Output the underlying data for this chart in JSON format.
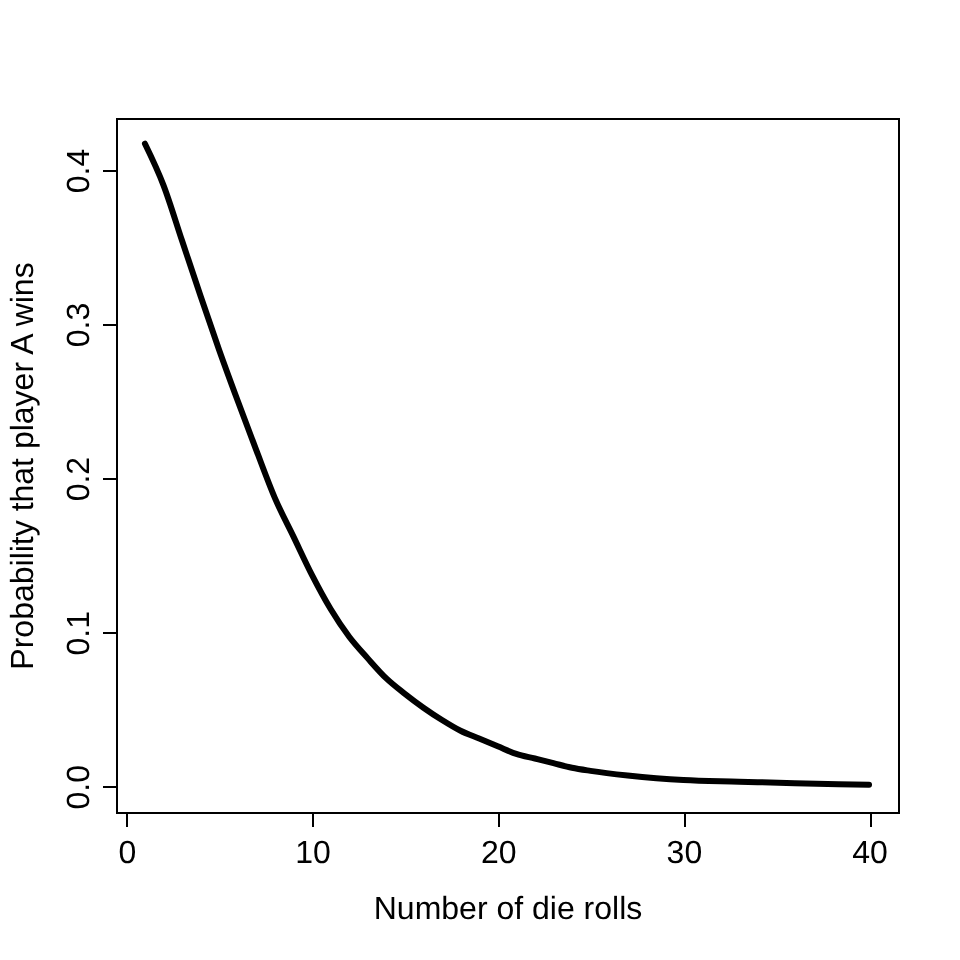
{
  "chart_data": {
    "type": "line",
    "xlabel": "Number of die rolls",
    "ylabel": "Probability that player A wins",
    "x": [
      1,
      2,
      3,
      4,
      5,
      6,
      7,
      8,
      9,
      10,
      11,
      12,
      13,
      14,
      15,
      16,
      17,
      18,
      19,
      20,
      21,
      22,
      23,
      24,
      25,
      27,
      30,
      33,
      36,
      40
    ],
    "series": [
      {
        "color": "#000000",
        "values": [
          0.417,
          0.39,
          0.354,
          0.318,
          0.283,
          0.25,
          0.218,
          0.187,
          0.162,
          0.137,
          0.115,
          0.097,
          0.083,
          0.07,
          0.06,
          0.051,
          0.043,
          0.036,
          0.031,
          0.026,
          0.021,
          0.018,
          0.015,
          0.012,
          0.01,
          0.007,
          0.004,
          0.003,
          0.002,
          0.001
        ]
      }
    ],
    "xlim": [
      -0.56,
      41.56
    ],
    "ylim": [
      -0.0167,
      0.4337
    ],
    "xticks": [
      0,
      10,
      20,
      30,
      40
    ],
    "yticks": [
      {
        "value": 0,
        "label": "0.0"
      },
      0.1,
      0.2,
      0.3,
      0.4
    ],
    "grid": false,
    "legend": false,
    "marker": "none",
    "line_style": "solid"
  }
}
